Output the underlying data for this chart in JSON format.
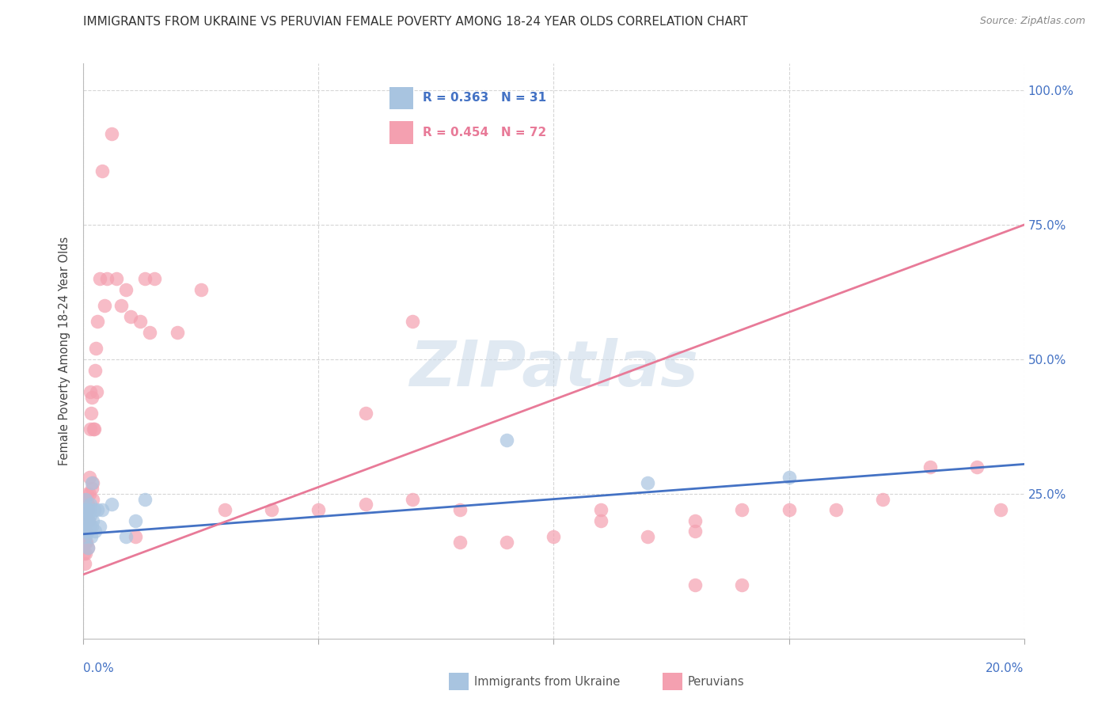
{
  "title": "IMMIGRANTS FROM UKRAINE VS PERUVIAN FEMALE POVERTY AMONG 18-24 YEAR OLDS CORRELATION CHART",
  "source": "Source: ZipAtlas.com",
  "ylabel": "Female Poverty Among 18-24 Year Olds",
  "legend_ukraine_r": "0.363",
  "legend_ukraine_n": "31",
  "legend_peru_r": "0.454",
  "legend_peru_n": "72",
  "ukraine_color": "#a8c4e0",
  "peru_color": "#f4a0b0",
  "ukraine_line_color": "#4472c4",
  "peru_line_color": "#e87a98",
  "watermark": "ZIPatlas",
  "watermark_color": "#c8d8e8",
  "ukraine_scatter_x": [
    0.0,
    0.0002,
    0.0003,
    0.0004,
    0.0005,
    0.0006,
    0.0007,
    0.0008,
    0.0009,
    0.001,
    0.0011,
    0.0012,
    0.0013,
    0.0014,
    0.0015,
    0.0016,
    0.0017,
    0.0018,
    0.002,
    0.0022,
    0.0025,
    0.003,
    0.0035,
    0.004,
    0.006,
    0.009,
    0.011,
    0.013,
    0.09,
    0.12,
    0.15
  ],
  "ukraine_scatter_y": [
    0.22,
    0.2,
    0.18,
    0.24,
    0.17,
    0.22,
    0.19,
    0.21,
    0.15,
    0.18,
    0.2,
    0.19,
    0.22,
    0.23,
    0.21,
    0.17,
    0.27,
    0.19,
    0.2,
    0.22,
    0.18,
    0.22,
    0.19,
    0.22,
    0.23,
    0.17,
    0.2,
    0.24,
    0.35,
    0.27,
    0.28
  ],
  "peru_scatter_x": [
    0.0,
    0.0001,
    0.0002,
    0.0003,
    0.0003,
    0.0004,
    0.0005,
    0.0005,
    0.0006,
    0.0007,
    0.0007,
    0.0008,
    0.0009,
    0.0009,
    0.001,
    0.0011,
    0.0012,
    0.0013,
    0.0014,
    0.0015,
    0.0016,
    0.0017,
    0.0018,
    0.0019,
    0.002,
    0.0021,
    0.0022,
    0.0024,
    0.0026,
    0.0028,
    0.003,
    0.0035,
    0.004,
    0.0045,
    0.005,
    0.006,
    0.007,
    0.008,
    0.009,
    0.01,
    0.011,
    0.012,
    0.013,
    0.014,
    0.015,
    0.02,
    0.025,
    0.03,
    0.04,
    0.05,
    0.06,
    0.07,
    0.08,
    0.09,
    0.1,
    0.11,
    0.12,
    0.13,
    0.14,
    0.15,
    0.16,
    0.17,
    0.18,
    0.19,
    0.195,
    0.11,
    0.13,
    0.14,
    0.06,
    0.07,
    0.13,
    0.08
  ],
  "peru_scatter_y": [
    0.24,
    0.14,
    0.16,
    0.12,
    0.2,
    0.16,
    0.14,
    0.18,
    0.16,
    0.2,
    0.25,
    0.22,
    0.23,
    0.15,
    0.22,
    0.2,
    0.25,
    0.28,
    0.37,
    0.44,
    0.4,
    0.43,
    0.26,
    0.24,
    0.27,
    0.37,
    0.37,
    0.48,
    0.52,
    0.44,
    0.57,
    0.65,
    0.85,
    0.6,
    0.65,
    0.92,
    0.65,
    0.6,
    0.63,
    0.58,
    0.17,
    0.57,
    0.65,
    0.55,
    0.65,
    0.55,
    0.63,
    0.22,
    0.22,
    0.22,
    0.23,
    0.24,
    0.22,
    0.16,
    0.17,
    0.22,
    0.17,
    0.08,
    0.08,
    0.22,
    0.22,
    0.24,
    0.3,
    0.3,
    0.22,
    0.2,
    0.18,
    0.22,
    0.4,
    0.57,
    0.2,
    0.16
  ],
  "xlim": [
    0.0,
    0.2
  ],
  "ylim": [
    -0.02,
    1.05
  ],
  "regression_ukraine_m": 0.65,
  "regression_ukraine_b": 0.175,
  "regression_peru_m": 3.25,
  "regression_peru_b": 0.1
}
